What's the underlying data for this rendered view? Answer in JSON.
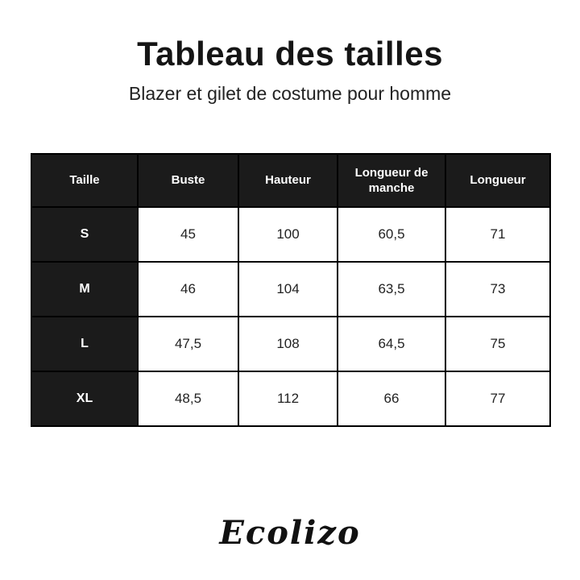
{
  "title": "Tableau des tailles",
  "subtitle": "Blazer et gilet de costume pour homme",
  "table": {
    "columns": [
      "Taille",
      "Buste",
      "Hauteur",
      "Longueur de manche",
      "Longueur"
    ],
    "rows": [
      {
        "size": "S",
        "values": [
          "45",
          "100",
          "60,5",
          "71"
        ]
      },
      {
        "size": "M",
        "values": [
          "46",
          "104",
          "63,5",
          "73"
        ]
      },
      {
        "size": "L",
        "values": [
          "47,5",
          "108",
          "64,5",
          "75"
        ]
      },
      {
        "size": "XL",
        "values": [
          "48,5",
          "112",
          "66",
          "77"
        ]
      }
    ]
  },
  "brand": "Ecolizo",
  "colors": {
    "header_bg": "#1b1b1b",
    "border": "#000000",
    "header_text": "#ffffff",
    "body_text": "#222222",
    "background": "#ffffff"
  }
}
